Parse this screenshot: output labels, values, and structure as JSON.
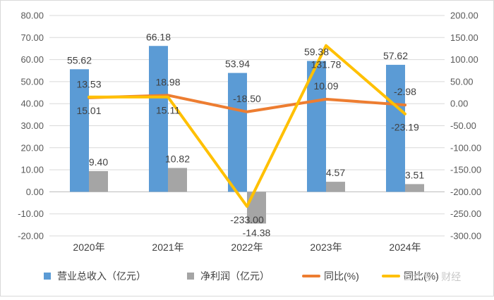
{
  "chart_data": {
    "type": "bar",
    "categories": [
      "2020年",
      "2021年",
      "2022年",
      "2023年",
      "2024年"
    ],
    "y_left": {
      "min": -20,
      "max": 80,
      "step": 10
    },
    "y_right": {
      "min": -300,
      "max": 200,
      "step": 50
    },
    "series": [
      {
        "name": "营业总收入（亿元）",
        "type": "bar",
        "axis": "left",
        "color": "#5b9bd5",
        "values": [
          55.62,
          66.18,
          53.94,
          59.38,
          57.62
        ],
        "labels": [
          "55.62",
          "66.18",
          "53.94",
          "59.38",
          "57.62"
        ]
      },
      {
        "name": "净利润（亿元）",
        "type": "bar",
        "axis": "left",
        "color": "#a5a5a5",
        "values": [
          9.4,
          10.82,
          -14.38,
          4.57,
          3.51
        ],
        "labels": [
          "9.40",
          "10.82",
          "-14.38",
          "4.57",
          "3.51"
        ]
      },
      {
        "name": "同比(%)",
        "type": "line",
        "axis": "right",
        "color": "#ed7d31",
        "values": [
          13.53,
          18.98,
          -18.5,
          10.09,
          -2.98
        ],
        "labels": [
          "13.53",
          "18.98",
          "-18.50",
          "10.09",
          "-2.98"
        ]
      },
      {
        "name": "同比(%)",
        "type": "line",
        "axis": "right",
        "color": "#ffc000",
        "values": [
          15.01,
          15.11,
          -233.0,
          131.78,
          -23.19
        ],
        "labels": [
          "15.01",
          "15.11",
          "-233.00",
          "131.78",
          "-23.19"
        ]
      }
    ],
    "legend_position": "bottom",
    "watermark": "公众号 · 财经"
  }
}
